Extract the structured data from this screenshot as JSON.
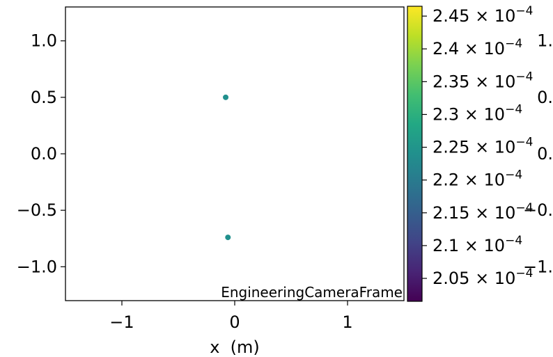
{
  "chart_data": {
    "type": "scatter",
    "xlabel": "x  (m)",
    "xlim": [
      -1.5,
      1.5
    ],
    "ylim": [
      -1.3,
      1.3
    ],
    "x_ticks": [
      {
        "value": -1,
        "label": "−1"
      },
      {
        "value": 0,
        "label": "0"
      },
      {
        "value": 1,
        "label": "1"
      }
    ],
    "y_ticks": [
      {
        "value": 1.0,
        "label": "1.0"
      },
      {
        "value": 0.5,
        "label": "0.5"
      },
      {
        "value": 0.0,
        "label": "0.0"
      },
      {
        "value": -0.5,
        "label": "−0.5"
      },
      {
        "value": -1.0,
        "label": "−1.0"
      }
    ],
    "points": [
      {
        "x": -0.08,
        "y": 0.5,
        "c": 0.000225
      },
      {
        "x": -0.06,
        "y": -0.74,
        "c": 0.000225
      }
    ],
    "point_color": "#21908d",
    "annotation": "EngineeringCameraFrame",
    "annotation_color": "#808080",
    "grid": false,
    "colorbar": {
      "colormap": "viridis",
      "range": [
        0.0002015,
        0.0002465
      ],
      "ticks": [
        {
          "value": 0.000245,
          "mantissa": "2.45"
        },
        {
          "value": 0.00024,
          "mantissa": "2.4"
        },
        {
          "value": 0.000235,
          "mantissa": "2.35"
        },
        {
          "value": 0.00023,
          "mantissa": "2.3"
        },
        {
          "value": 0.000225,
          "mantissa": "2.25"
        },
        {
          "value": 0.00022,
          "mantissa": "2.2"
        },
        {
          "value": 0.000215,
          "mantissa": "2.15"
        },
        {
          "value": 0.00021,
          "mantissa": "2.1"
        },
        {
          "value": 0.000205,
          "mantissa": "2.05"
        }
      ],
      "multiplier": "× 10",
      "exponent": "−4"
    },
    "clipped_right_labels": [
      {
        "text": "1.",
        "y": 1.0
      },
      {
        "text": "0.",
        "y": 0.5
      },
      {
        "text": "0.",
        "y": 0.0
      },
      {
        "text": "−0.",
        "y": -0.5
      },
      {
        "text": "−1.",
        "y": -1.0
      }
    ]
  }
}
